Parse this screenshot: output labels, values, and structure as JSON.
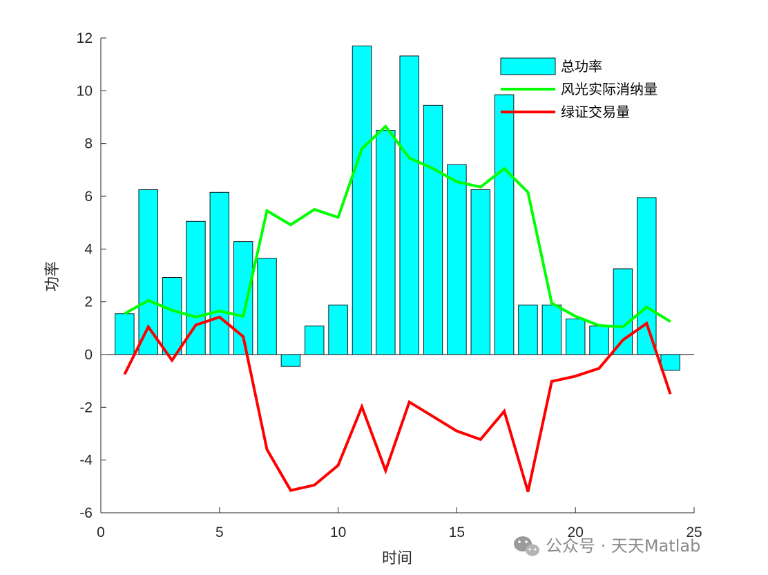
{
  "chart_data": {
    "type": "bar",
    "xlabel": "时间",
    "ylabel": "功率",
    "xlim": [
      0,
      25
    ],
    "ylim": [
      -6,
      12
    ],
    "xticks": [
      0,
      5,
      10,
      15,
      20,
      25
    ],
    "yticks": [
      -6,
      -4,
      -2,
      0,
      2,
      4,
      6,
      8,
      10,
      12
    ],
    "x": [
      1,
      2,
      3,
      4,
      5,
      6,
      7,
      8,
      9,
      10,
      11,
      12,
      13,
      14,
      15,
      16,
      17,
      18,
      19,
      20,
      21,
      22,
      23,
      24
    ],
    "series": [
      {
        "name": "总功率",
        "kind": "bar",
        "color": "#00FFFF",
        "values": [
          1.55,
          6.25,
          2.92,
          5.05,
          6.15,
          4.28,
          3.65,
          -0.45,
          1.08,
          1.88,
          11.7,
          8.5,
          11.32,
          9.45,
          7.2,
          6.25,
          9.85,
          1.88,
          1.88,
          1.35,
          1.08,
          3.25,
          5.95,
          -0.6
        ]
      },
      {
        "name": "风光实际消纳量",
        "kind": "line",
        "color": "#00FF00",
        "values": [
          1.55,
          2.05,
          1.68,
          1.42,
          1.65,
          1.45,
          5.45,
          4.92,
          5.5,
          5.2,
          7.8,
          8.65,
          7.45,
          7.05,
          6.55,
          6.35,
          7.05,
          6.15,
          1.95,
          1.45,
          1.1,
          1.05,
          1.8,
          1.25
        ]
      },
      {
        "name": "绿证交易量",
        "kind": "line",
        "color": "#FF0000",
        "values": [
          -0.75,
          1.05,
          -0.22,
          1.12,
          1.42,
          0.68,
          -3.6,
          -5.15,
          -4.95,
          -4.2,
          -1.98,
          -4.4,
          -1.8,
          -2.35,
          -2.9,
          -3.22,
          -2.15,
          -5.2,
          -1.02,
          -0.82,
          -0.52,
          0.55,
          1.18,
          -1.5
        ]
      }
    ],
    "legend_position": "top-right",
    "grid": false
  },
  "watermark": {
    "text": "公众号 · 天天Matlab",
    "icon": "wechat-icon"
  }
}
